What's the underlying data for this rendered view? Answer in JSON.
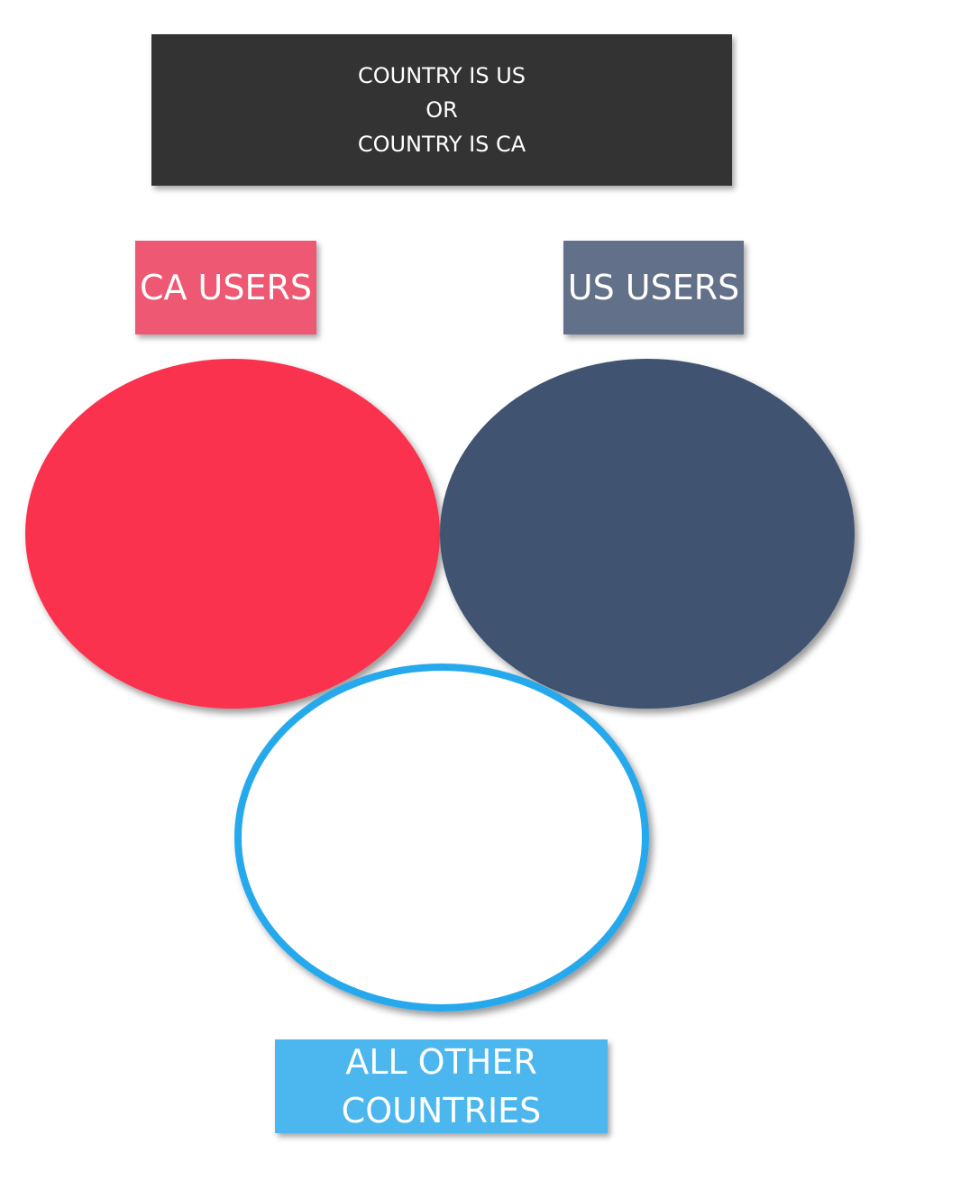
{
  "condition": {
    "lines": [
      "COUNTRY IS US",
      "OR",
      "COUNTRY IS CA"
    ],
    "bg_color": "#333333"
  },
  "labels": {
    "ca": {
      "text": "CA USERS",
      "bg_color": "#ef5872"
    },
    "us": {
      "text": "US USERS",
      "bg_color": "#637089"
    },
    "other": {
      "lines": [
        "ALL OTHER",
        "COUNTRIES"
      ],
      "bg_color": "#4cb6ee"
    }
  },
  "sets": {
    "ca": {
      "fill": "#fb304d"
    },
    "us": {
      "fill": "#41526f"
    },
    "other": {
      "fill": "#ffffff",
      "stroke": "#27a9ec"
    }
  }
}
